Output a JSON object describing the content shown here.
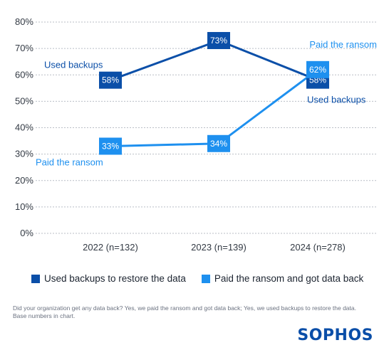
{
  "chart_data": {
    "type": "line",
    "categories": [
      "2022 (n=132)",
      "2023 (n=139)",
      "2024 (n=278)"
    ],
    "ylim": [
      0,
      80
    ],
    "yticks": [
      "0%",
      "10%",
      "20%",
      "30%",
      "40%",
      "50%",
      "60%",
      "70%",
      "80%"
    ],
    "yticks_values": [
      0,
      10,
      20,
      30,
      40,
      50,
      60,
      70,
      80
    ],
    "grid": true,
    "series": [
      {
        "name": "Used backups to restore the data",
        "values": [
          58,
          73,
          58
        ],
        "labels": [
          "58%",
          "73%",
          "58%"
        ],
        "color": "#0b4fa8"
      },
      {
        "name": "Paid the ransom and got data back",
        "values": [
          33,
          34,
          62
        ],
        "labels": [
          "33%",
          "34%",
          "62%"
        ],
        "color": "#1e90ef"
      }
    ],
    "annotations": [
      {
        "text": "Used backups",
        "series": 0,
        "category": 0
      },
      {
        "text": "Paid the ransom",
        "series": 1,
        "category": 0
      },
      {
        "text": "Paid the ransom",
        "series": 1,
        "category": 2
      },
      {
        "text": "Used backups",
        "series": 0,
        "category": 2
      }
    ],
    "legend_position": "bottom"
  },
  "footnote": "Did your organization get any data back? Yes, we paid the ransom and got data back; Yes, we used backups to restore the data. Base numbers in chart.",
  "logo_text": "SOPHOS"
}
